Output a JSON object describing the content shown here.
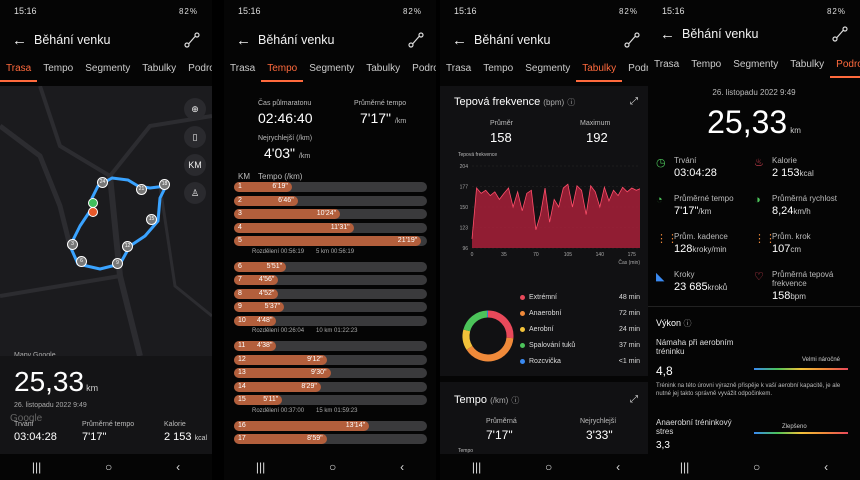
{
  "status": {
    "time": "15:16",
    "battery": "82%"
  },
  "header": {
    "title": "Běhání venku"
  },
  "tabs": [
    "Trasa",
    "Tempo",
    "Segmenty",
    "Tabulky",
    "Podrobnosti"
  ],
  "colors": {
    "accent": "#ff6a3d",
    "hr_area": "#a8203a",
    "route": "#3aa3ff"
  },
  "trasa": {
    "map_buttons": {
      "km": "KM"
    },
    "markers": [
      "24",
      "21",
      "18",
      "15",
      "12",
      "9",
      "6",
      "3"
    ],
    "map_source": "Mapy Google",
    "distance": "25,33",
    "distance_unit": "km",
    "date": "26. listopadu 2022 9:49",
    "google": "Google",
    "stats": [
      {
        "label": "Trvání",
        "value": "03:04:28"
      },
      {
        "label": "Průměrné tempo",
        "value": "7'17\""
      },
      {
        "label": "Kalorie",
        "value": "2 153",
        "unit": "kcal"
      }
    ]
  },
  "tempo": {
    "half_marathon_label": "Čas půlmaratonu",
    "half_marathon_value": "02:46:40",
    "avg_pace_label": "Průměrné tempo",
    "avg_pace_value": "7'17\"",
    "avg_pace_unit": "/km",
    "fastest_label": "Nejrychlejší (/km)",
    "fastest_value": "4'03\"",
    "fastest_unit": "/km",
    "col_km": "KM",
    "col_tempo": "Tempo (/km)",
    "rows": [
      {
        "km": "1",
        "pace": "6'19\"",
        "frac": 0.3
      },
      {
        "km": "2",
        "pace": "6'46\"",
        "frac": 0.33
      },
      {
        "km": "3",
        "pace": "10'24\"",
        "frac": 0.55
      },
      {
        "km": "4",
        "pace": "11'31\"",
        "frac": 0.62
      },
      {
        "km": "5",
        "pace": "21'19\"",
        "frac": 0.97
      },
      {
        "km": "6",
        "pace": "5'51\"",
        "frac": 0.27
      },
      {
        "km": "7",
        "pace": "4'56\"",
        "frac": 0.23
      },
      {
        "km": "8",
        "pace": "4'52\"",
        "frac": 0.23
      },
      {
        "km": "9",
        "pace": "5'37\"",
        "frac": 0.26
      },
      {
        "km": "10",
        "pace": "4'48\"",
        "frac": 0.22
      },
      {
        "km": "11",
        "pace": "4'38\"",
        "frac": 0.22
      },
      {
        "km": "12",
        "pace": "9'12\"",
        "frac": 0.48
      },
      {
        "km": "13",
        "pace": "9'30\"",
        "frac": 0.5
      },
      {
        "km": "14",
        "pace": "8'29\"",
        "frac": 0.45
      },
      {
        "km": "15",
        "pace": "5'11\"",
        "frac": 0.25
      },
      {
        "km": "16",
        "pace": "13'14\"",
        "frac": 0.7
      },
      {
        "km": "17",
        "pace": "8'59\"",
        "frac": 0.48
      }
    ],
    "splits": [
      {
        "left": "Rozdělení 00:56:19",
        "right": "5 km 00:56:19"
      },
      {
        "left": "Rozdělení 00:26:04",
        "right": "10 km 01:22:23"
      },
      {
        "left": "Rozdělení 00:37:00",
        "right": "15 km 01:59:23"
      }
    ]
  },
  "tabulky": {
    "hr_title": "Tepová frekvence",
    "hr_unit": "(bpm)",
    "avg_label": "Průměr",
    "avg_value": "158",
    "max_label": "Maximum",
    "max_value": "192",
    "chart_caption": "Tepová frekvence",
    "x_caption": "Čas (min)",
    "zones": [
      {
        "name": "Extrémní",
        "value": "48 min",
        "color": "#e8495a"
      },
      {
        "name": "Anaerobní",
        "value": "72 min",
        "color": "#f08a3a"
      },
      {
        "name": "Aerobní",
        "value": "24 min",
        "color": "#f2c23a"
      },
      {
        "name": "Spalování tuků",
        "value": "37 min",
        "color": "#4cc35a"
      },
      {
        "name": "Rozcvička",
        "value": "<1 min",
        "color": "#3a8af2"
      }
    ],
    "tempo_title": "Tempo",
    "tempo_unit": "(/km)",
    "tempo_avg_label": "Průměrná",
    "tempo_avg_value": "7'17\"",
    "tempo_fast_label": "Nejrychlejší",
    "tempo_fast_value": "3'33\"",
    "tempo_caption": "Tempo"
  },
  "chart_data": {
    "type": "area",
    "title": "Tepová frekvence",
    "xlabel": "Čas (min)",
    "ylabel": "",
    "x_ticks": [
      0,
      35,
      70,
      105,
      140,
      175
    ],
    "y_ticks": [
      96,
      123,
      150,
      177,
      204
    ],
    "ylim": [
      96,
      204
    ],
    "xlim": [
      0,
      184
    ],
    "x": [
      0,
      5,
      10,
      15,
      20,
      25,
      30,
      35,
      40,
      45,
      50,
      55,
      60,
      65,
      70,
      75,
      80,
      85,
      90,
      95,
      100,
      105,
      110,
      115,
      120,
      125,
      130,
      135,
      140,
      145,
      150,
      155,
      160,
      165,
      170,
      175,
      180,
      184
    ],
    "values": [
      108,
      175,
      168,
      172,
      165,
      170,
      160,
      168,
      175,
      150,
      170,
      145,
      168,
      172,
      120,
      140,
      175,
      130,
      160,
      150,
      175,
      180,
      150,
      178,
      172,
      140,
      178,
      170,
      150,
      176,
      158,
      172,
      165,
      176,
      170,
      175,
      172,
      174
    ]
  },
  "podrobnosti": {
    "date": "26. listopadu 2022 9:49",
    "distance": "25,33",
    "distance_unit": "km",
    "metrics": [
      {
        "label": "Trvání",
        "value": "03:04:28",
        "unit": "",
        "icon": "timer-icon",
        "color": "#4cc35a"
      },
      {
        "label": "Kalorie",
        "value": "2 153",
        "unit": "kcal",
        "icon": "flame-icon",
        "color": "#e8495a"
      },
      {
        "label": "Průměrné tempo",
        "value": "7'17\"",
        "unit": "/km",
        "icon": "speedometer-icon",
        "color": "#4cc35a"
      },
      {
        "label": "Průměrná rychlost",
        "value": "8,24",
        "unit": "km/h",
        "icon": "speed-icon",
        "color": "#4cc35a"
      },
      {
        "label": "Prům. kadence",
        "value": "128",
        "unit": "kroky/min",
        "icon": "footsteps-icon",
        "color": "#f08a3a"
      },
      {
        "label": "Prům. krok",
        "value": "107",
        "unit": "cm",
        "icon": "stride-icon",
        "color": "#f08a3a"
      },
      {
        "label": "Kroky",
        "value": "23 685",
        "unit": "kroků",
        "icon": "shoe-icon",
        "color": "#3a8af2"
      },
      {
        "label": "Průměrná tepová frekvence",
        "value": "158",
        "unit": "bpm",
        "icon": "heart-icon",
        "color": "#e8495a"
      }
    ],
    "performance_title": "Výkon",
    "aerobic_label": "Námaha při aerobním tréninku",
    "aerobic_value": "4,8",
    "aerobic_level": "Velmi náročné",
    "aerobic_text": "Trénink na této úrovni výrazně přispěje k vaší aerobní kapacitě, je ale nutné jej takto správně vyvážit odpočinkem.",
    "anaerobic_label": "Anaerobní tréninkový stres",
    "anaerobic_value": "3,3",
    "anaerobic_level": "Zlepšeno"
  }
}
